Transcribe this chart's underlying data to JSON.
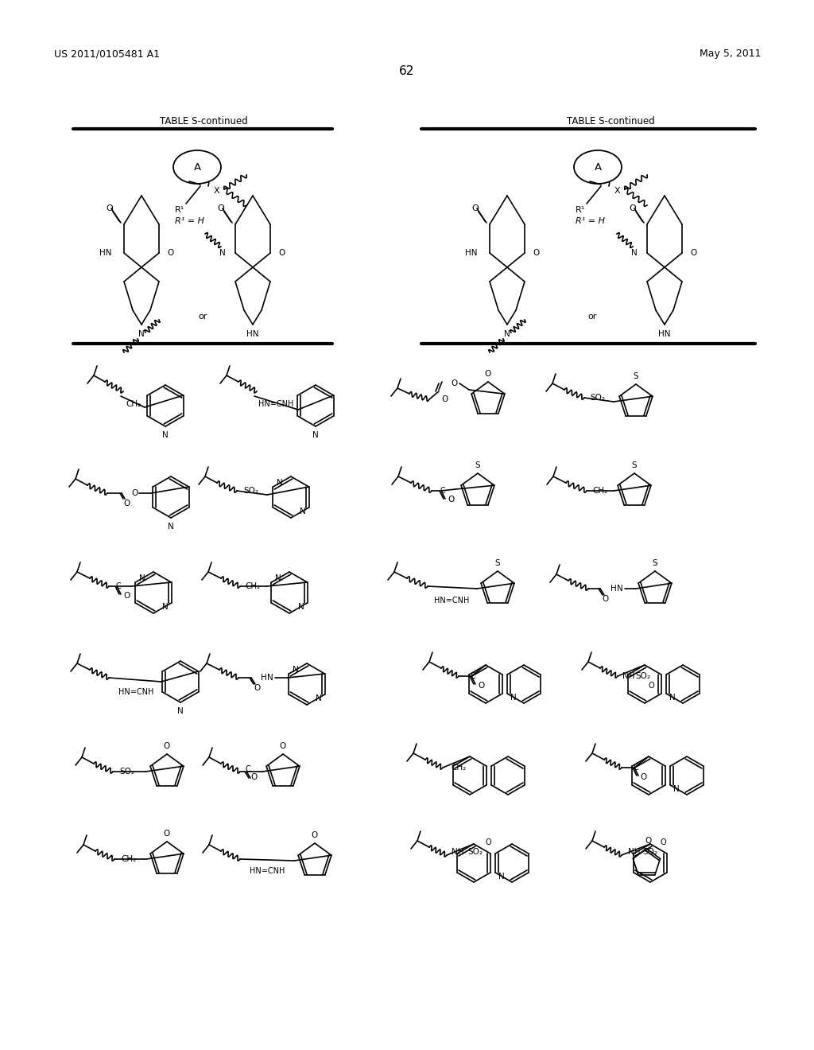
{
  "page_number": "62",
  "left_header": "US 2011/0105481 A1",
  "right_header": "May 5, 2011",
  "table_title": "TABLE S-continued",
  "background_color": "#ffffff"
}
